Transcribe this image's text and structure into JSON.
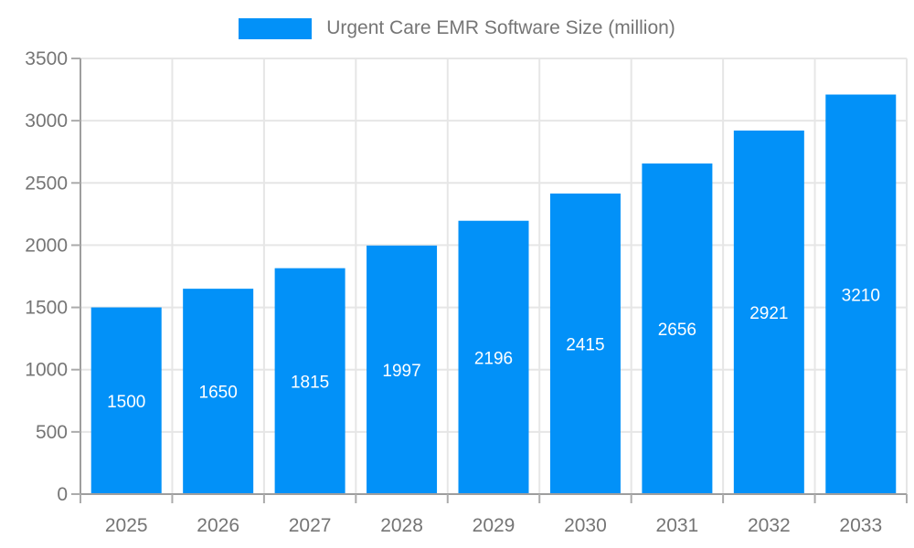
{
  "legend": {
    "series_label": "Urgent Care EMR Software Size (million)"
  },
  "colors": {
    "bar": "#0291F8",
    "grid": "#E6E6E6",
    "axis_line": "#9E9E9E",
    "tick": "#ABABAB",
    "axis_text": "#757575",
    "value_label": "#FFFFFF"
  },
  "chart_data": {
    "type": "bar",
    "title": "Urgent Care EMR Software Size (million)",
    "categories": [
      "2025",
      "2026",
      "2027",
      "2028",
      "2029",
      "2030",
      "2031",
      "2032",
      "2033"
    ],
    "values": [
      1500,
      1650,
      1815,
      1997,
      2196,
      2415,
      2656,
      2921,
      3210
    ],
    "xlabel": "",
    "ylabel": "",
    "ylim": [
      0,
      3500
    ],
    "ytick_step": 500,
    "grid": true,
    "legend_position": "top",
    "value_label_position": "inside-center"
  }
}
